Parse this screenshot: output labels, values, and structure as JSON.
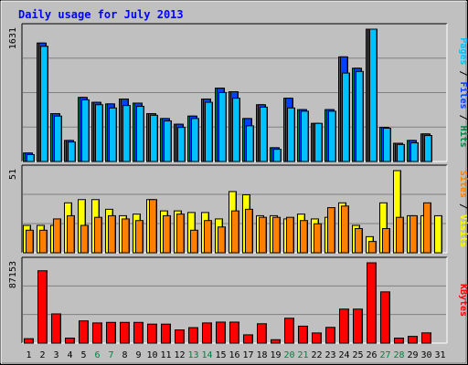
{
  "chart_data": [
    {
      "type": "bar",
      "title": "Daily usage for July 2013",
      "ytick_max": "1631",
      "side_label": {
        "parts": [
          {
            "text": "Pages",
            "color": "#00c0ff"
          },
          {
            "text": " / ",
            "color": "#000000"
          },
          {
            "text": "Files",
            "color": "#0040ff"
          },
          {
            "text": " / ",
            "color": "#000000"
          },
          {
            "text": "Hits",
            "color": "#008040"
          }
        ]
      },
      "ylim": [
        0,
        1631
      ],
      "series": [
        {
          "name": "Hits",
          "color": "#008040",
          "values": [
            105,
            1460,
            590,
            260,
            790,
            730,
            710,
            770,
            720,
            590,
            530,
            460,
            560,
            770,
            905,
            860,
            530,
            700,
            170,
            780,
            640,
            470,
            640,
            1290,
            1150,
            1631,
            420,
            225,
            260,
            340,
            0
          ]
        },
        {
          "name": "Files",
          "color": "#0040ff",
          "values": [
            105,
            1460,
            590,
            260,
            790,
            730,
            710,
            770,
            720,
            590,
            530,
            460,
            560,
            770,
            905,
            860,
            530,
            700,
            170,
            780,
            640,
            470,
            640,
            1290,
            1150,
            1631,
            420,
            225,
            260,
            340,
            0
          ]
        },
        {
          "name": "Pages",
          "color": "#00c0ff",
          "values": [
            85,
            1420,
            560,
            240,
            760,
            700,
            660,
            690,
            680,
            570,
            500,
            420,
            530,
            730,
            850,
            780,
            440,
            670,
            150,
            660,
            620,
            470,
            620,
            1090,
            1110,
            1631,
            410,
            210,
            230,
            320,
            0
          ]
        }
      ],
      "categories": [
        "1",
        "2",
        "3",
        "4",
        "5",
        "6",
        "7",
        "8",
        "9",
        "10",
        "11",
        "12",
        "13",
        "14",
        "15",
        "16",
        "17",
        "18",
        "19",
        "20",
        "21",
        "22",
        "23",
        "24",
        "25",
        "26",
        "27",
        "28",
        "29",
        "30",
        "31"
      ]
    },
    {
      "type": "bar",
      "ytick_max": "51",
      "side_label": {
        "parts": [
          {
            "text": "Sites",
            "color": "#ff8000"
          },
          {
            "text": " / ",
            "color": "#000000"
          },
          {
            "text": "Visits",
            "color": "#ffff00"
          }
        ]
      },
      "ylim": [
        0,
        51
      ],
      "series": [
        {
          "name": "Visits",
          "color": "#ffff00",
          "values": [
            17,
            17,
            17,
            31,
            33,
            33,
            27,
            23,
            24,
            33,
            26,
            26,
            25,
            25,
            21,
            38,
            36,
            23,
            23,
            21,
            24,
            21,
            22,
            31,
            17,
            10,
            31,
            51,
            23,
            23,
            23
          ]
        },
        {
          "name": "Sites",
          "color": "#ff8000",
          "values": [
            14,
            14,
            21,
            23,
            17,
            22,
            23,
            21,
            20,
            33,
            23,
            24,
            14,
            20,
            16,
            26,
            27,
            22,
            22,
            22,
            20,
            18,
            28,
            29,
            15,
            7,
            15,
            22,
            23,
            31,
            0
          ]
        }
      ]
    },
    {
      "type": "bar",
      "ytick_max": "87153",
      "side_label": {
        "parts": [
          {
            "text": "KBytes",
            "color": "#ff0000"
          }
        ]
      },
      "ylim": [
        0,
        87153
      ],
      "series": [
        {
          "name": "KBytes",
          "color": "#ff0000",
          "values": [
            4800,
            78500,
            31700,
            5400,
            24100,
            21900,
            22500,
            22500,
            22500,
            20600,
            20600,
            14300,
            16800,
            21900,
            22800,
            22800,
            9000,
            21000,
            3700,
            27000,
            18400,
            11000,
            17100,
            36900,
            36900,
            87153,
            55600,
            5400,
            7300,
            11100,
            0
          ]
        }
      ]
    }
  ],
  "x_tick_colors": {
    "weekday": "#000000",
    "weekend": "#008040"
  },
  "weekend_days": [
    "6",
    "7",
    "13",
    "14",
    "20",
    "21",
    "27",
    "28"
  ]
}
